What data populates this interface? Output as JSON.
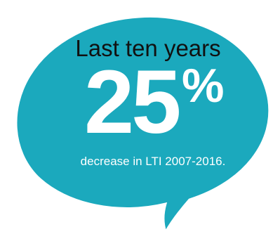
{
  "bubble": {
    "fill_color": "#1ba9bd",
    "outline_color": "#ffffff"
  },
  "text": {
    "headline": "Last ten years",
    "big_number": "25",
    "percent_sign": "%",
    "caption": "decrease in LTI 2007-2016."
  },
  "colors": {
    "headline_text": "#111111",
    "big_text": "#ffffff",
    "caption_text": "#ffffff"
  }
}
